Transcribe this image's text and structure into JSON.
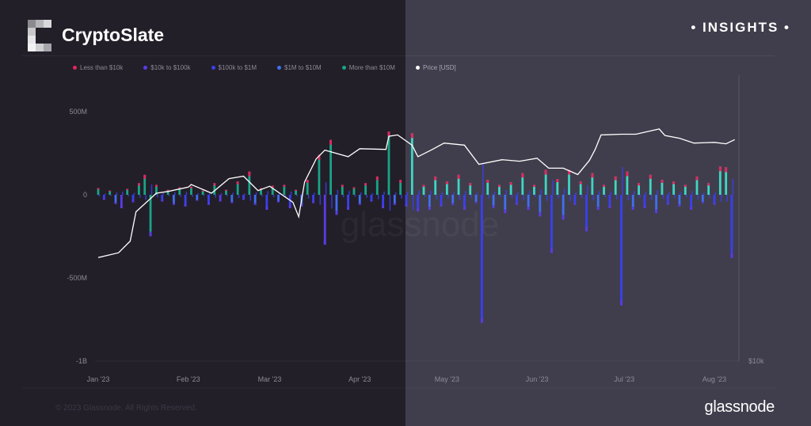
{
  "header": {
    "brand": "CryptoSlate",
    "badge": "• INSIGHTS •"
  },
  "footer": {
    "copyright": "© 2023 Glassnode. All Rights Reserved.",
    "logo_text": "glassnode"
  },
  "watermark": "glassnode",
  "colors": {
    "background_left": "#221f29",
    "background_right": "#403e4c",
    "price_line": "#ffffff"
  },
  "legend": [
    {
      "label": "Less than $10k",
      "color": "#e8245e"
    },
    {
      "label": "$10k to $100k",
      "color": "#5a3be6"
    },
    {
      "label": "$100k to $1M",
      "color": "#3a3ff2"
    },
    {
      "label": "$1M to $10M",
      "color": "#3f6ff0"
    },
    {
      "label": "More than $10M",
      "color": "#1aa487"
    },
    {
      "label": "Price [USD]",
      "color": "#ffffff"
    }
  ],
  "chart_data": {
    "type": "bar",
    "title": "",
    "left_axis": {
      "ticks": [
        "500M",
        "0",
        "-500M",
        "-1B"
      ],
      "tick_values": [
        500,
        0,
        -500,
        -1000
      ],
      "range_m": [
        -1000,
        720
      ]
    },
    "right_axis": {
      "ticks": [
        "$10k"
      ],
      "scale": "log",
      "range": [
        10000,
        41000
      ]
    },
    "x_axis": {
      "ticks": [
        "Jan '23",
        "Feb '23",
        "Mar '23",
        "Apr '23",
        "May '23",
        "Jun '23",
        "Jul '23",
        "Aug '23"
      ],
      "tick_dates": [
        "2023-01-01",
        "2023-02-01",
        "2023-03-01",
        "2023-04-01",
        "2023-05-01",
        "2023-06-01",
        "2023-07-01",
        "2023-08-01"
      ]
    },
    "bars": {
      "start_date": "2023-01-01",
      "interval_days": 2,
      "values_m": [
        40,
        -30,
        25,
        -55,
        -80,
        35,
        -45,
        70,
        120,
        -250,
        60,
        -40,
        30,
        -60,
        45,
        -70,
        50,
        -35,
        25,
        -60,
        70,
        -40,
        30,
        -50,
        80,
        -30,
        140,
        -60,
        40,
        -90,
        55,
        -45,
        60,
        -80,
        30,
        -70,
        90,
        -50,
        240,
        -300,
        330,
        -120,
        60,
        -90,
        45,
        -60,
        70,
        -40,
        110,
        -80,
        380,
        -60,
        90,
        -70,
        370,
        -100,
        60,
        -90,
        110,
        -70,
        80,
        -60,
        120,
        -90,
        70,
        -50,
        -770,
        90,
        -80,
        60,
        -110,
        75,
        -60,
        130,
        -90,
        60,
        -130,
        150,
        -350,
        95,
        -150,
        150,
        -60,
        80,
        -220,
        130,
        -90,
        60,
        -80,
        110,
        -665,
        140,
        -90,
        70,
        -80,
        120,
        -110,
        90,
        -60,
        80,
        -70,
        60,
        -90,
        110,
        -50,
        70,
        -60,
        170,
        165,
        -380
      ],
      "dominant_cohort": [
        4,
        2,
        4,
        3,
        1,
        4,
        2,
        4,
        4,
        4,
        4,
        2,
        4,
        3,
        4,
        2,
        4,
        3,
        4,
        2,
        4,
        1,
        4,
        3,
        4,
        2,
        4,
        3,
        4,
        2,
        4,
        3,
        4,
        2,
        4,
        3,
        4,
        2,
        4,
        1,
        4,
        3,
        4,
        2,
        4,
        3,
        4,
        2,
        4,
        2,
        4,
        3,
        4,
        2,
        4,
        2,
        4,
        3,
        4,
        2,
        4,
        3,
        4,
        2,
        4,
        3,
        2,
        4,
        3,
        4,
        3,
        4,
        2,
        4,
        3,
        4,
        3,
        4,
        2,
        4,
        3,
        4,
        2,
        4,
        2,
        4,
        3,
        4,
        2,
        4,
        2,
        4,
        3,
        4,
        2,
        4,
        3,
        4,
        2,
        4,
        3,
        4,
        2,
        4,
        3,
        4,
        2,
        4,
        4,
        2
      ]
    },
    "price_series": {
      "name": "Price [USD]",
      "points": [
        [
          "2023-01-01",
          16600
        ],
        [
          "2023-01-08",
          17000
        ],
        [
          "2023-01-12",
          18000
        ],
        [
          "2023-01-14",
          20800
        ],
        [
          "2023-01-21",
          22800
        ],
        [
          "2023-01-25",
          23000
        ],
        [
          "2023-02-01",
          23500
        ],
        [
          "2023-02-02",
          23800
        ],
        [
          "2023-02-09",
          22800
        ],
        [
          "2023-02-15",
          24500
        ],
        [
          "2023-02-20",
          24800
        ],
        [
          "2023-02-25",
          23100
        ],
        [
          "2023-03-01",
          23600
        ],
        [
          "2023-03-09",
          21800
        ],
        [
          "2023-03-11",
          20300
        ],
        [
          "2023-03-13",
          24100
        ],
        [
          "2023-03-17",
          27000
        ],
        [
          "2023-03-20",
          28200
        ],
        [
          "2023-03-28",
          27300
        ],
        [
          "2023-04-01",
          28400
        ],
        [
          "2023-04-10",
          28300
        ],
        [
          "2023-04-11",
          30200
        ],
        [
          "2023-04-14",
          30400
        ],
        [
          "2023-04-19",
          28900
        ],
        [
          "2023-04-21",
          27300
        ],
        [
          "2023-04-26",
          28300
        ],
        [
          "2023-04-30",
          29200
        ],
        [
          "2023-05-07",
          28900
        ],
        [
          "2023-05-12",
          26300
        ],
        [
          "2023-05-20",
          26900
        ],
        [
          "2023-05-26",
          26700
        ],
        [
          "2023-06-01",
          27100
        ],
        [
          "2023-06-05",
          25800
        ],
        [
          "2023-06-10",
          25800
        ],
        [
          "2023-06-15",
          25000
        ],
        [
          "2023-06-19",
          26800
        ],
        [
          "2023-06-21",
          28300
        ],
        [
          "2023-06-23",
          30400
        ],
        [
          "2023-06-30",
          30500
        ],
        [
          "2023-07-05",
          30500
        ],
        [
          "2023-07-13",
          31300
        ],
        [
          "2023-07-15",
          30300
        ],
        [
          "2023-07-20",
          29900
        ],
        [
          "2023-07-25",
          29200
        ],
        [
          "2023-08-01",
          29300
        ],
        [
          "2023-08-05",
          29100
        ],
        [
          "2023-08-08",
          29700
        ]
      ]
    },
    "grid": false,
    "legend_position": "top-left"
  }
}
